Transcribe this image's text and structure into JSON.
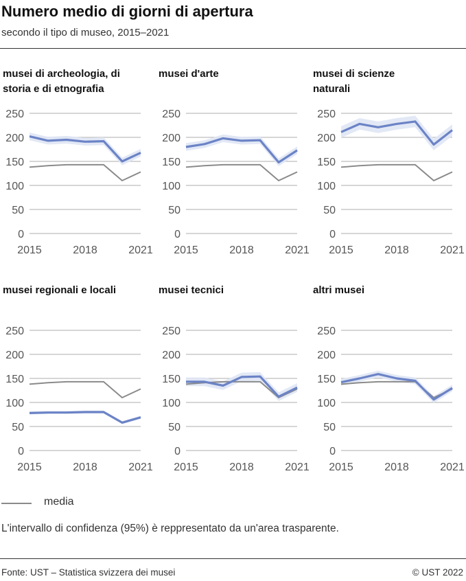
{
  "title": "Numero medio di giorni di apertura",
  "subtitle": "secondo il tipo di museo, 2015–2021",
  "legend": {
    "media_label": "media"
  },
  "note": "L'intervallo di confidenza (95%) è reppresentato da un'area trasparente.",
  "footer": {
    "source": "Fonte: UST – Statistica svizzera dei musei",
    "copyright": "© UST 2022"
  },
  "colors": {
    "series": "#6b83c6",
    "ci_band": "#dfe5f4",
    "media": "#8a8a8a",
    "grid": "#bdbdbd"
  },
  "chart_data": {
    "type": "line",
    "layout": "small multiples, 2 rows × 3 columns",
    "x": [
      2015,
      2016,
      2017,
      2018,
      2019,
      2020,
      2021
    ],
    "x_ticks": [
      "2015",
      "2018",
      "2021"
    ],
    "y_ticks": [
      "0",
      "50",
      "100",
      "150",
      "200",
      "250"
    ],
    "ylim": [
      0,
      250
    ],
    "grid": true,
    "media": [
      138,
      141,
      143,
      143,
      143,
      110,
      128
    ],
    "panels": [
      {
        "title": "musei di archeologia, di storia e di etnografia",
        "values": [
          202,
          193,
          195,
          191,
          192,
          150,
          168
        ],
        "ci": 8
      },
      {
        "title": "musei d'arte",
        "values": [
          180,
          186,
          198,
          193,
          194,
          148,
          173
        ],
        "ci": 8
      },
      {
        "title": "musei di scienze naturali",
        "values": [
          211,
          228,
          221,
          228,
          233,
          185,
          215
        ],
        "ci": 12
      },
      {
        "title": "musei regionali e locali",
        "values": [
          78,
          79,
          79,
          80,
          80,
          58,
          69
        ],
        "ci": 3
      },
      {
        "title": "musei tecnici",
        "values": [
          143,
          143,
          135,
          153,
          154,
          112,
          131
        ],
        "ci": 9
      },
      {
        "title": "altri musei",
        "values": [
          142,
          150,
          159,
          150,
          145,
          106,
          130
        ],
        "ci": 7
      }
    ]
  }
}
